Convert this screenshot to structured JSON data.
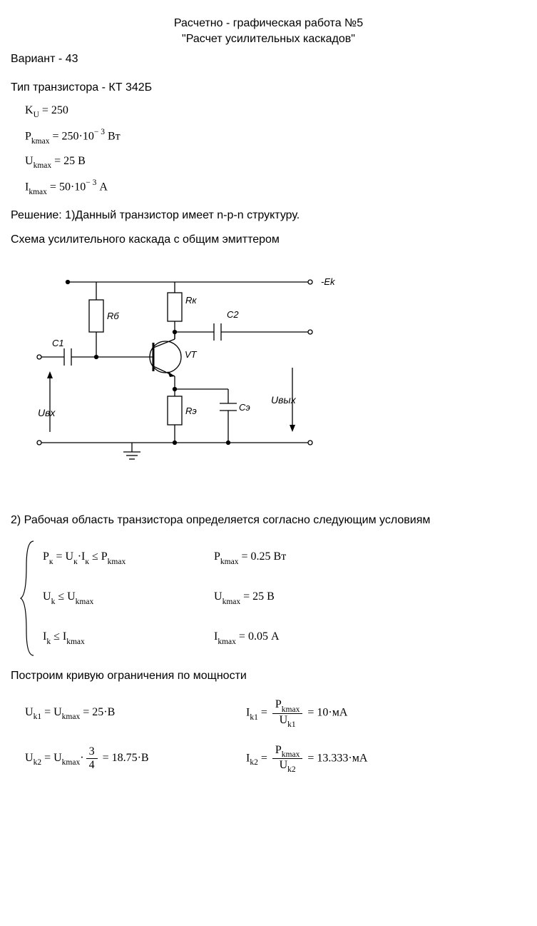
{
  "header": {
    "title1": "Расчетно - графическая работа №5",
    "title2": "\"Расчет усилительных каскадов\"",
    "variant": "Вариант - 43"
  },
  "params": {
    "transistor_line": "Тип транзистора - КТ 342Б",
    "ku_label": "K",
    "ku_sub": "U",
    "ku_val": " = 250",
    "pk_label": "P",
    "pk_sub": "kmax",
    "pk_val": " = 250·10",
    "pk_exp": "− 3",
    "pk_unit": " Вт",
    "uk_label": "U",
    "uk_sub": "kmax",
    "uk_val": " = 25  В",
    "ik_label": "I",
    "ik_sub": "kmax",
    "ik_val": " = 50·10",
    "ik_exp": "− 3",
    "ik_unit": "  А"
  },
  "solution": {
    "line1": "Решение: 1)Данный транзистор имеет n-p-n структуру.",
    "line2": "Схема усилительного каскада с общим эмиттером"
  },
  "circuit": {
    "labels": {
      "ek": "-Ek",
      "rb": "Rб",
      "rk": "Rк",
      "c1": "C1",
      "c2": "С2",
      "vt": "VT",
      "re": "Rэ",
      "ce": "Сэ",
      "uin": "Uвх",
      "uout": "Uвых"
    },
    "stroke": "#000000",
    "stroke_width": 1.3,
    "font_size_label": 13,
    "font_size_io": 14
  },
  "section2": {
    "heading": "2) Рабочая область транзистора определяется согласно следующим условиям",
    "r1c1_html": "P<span class='sub'>к</span> = U<span class='sub'>к</span>·I<span class='sub'>к</span> ≤ P<span class='sub'>kmax</span>",
    "r1c2_html": "P<span class='sub'>kmax</span> = 0.25  Вт",
    "r2c1_html": "U<span class='sub'>k</span> ≤ U<span class='sub'>kmax</span>",
    "r2c2_html": "U<span class='sub'>kmax</span> = 25   В",
    "r3c1_html": "I<span class='sub'>k</span> ≤ I<span class='sub'>kmax</span>",
    "r3c2_html": "I<span class='sub'>kmax</span> = 0.05   А",
    "curve_line": "Построим кривую ограничения по мощности",
    "eq1_left_html": "U<span class='sub'>k1</span> = U<span class='sub'>kmax</span> = 25·В",
    "eq1_right_pre": "I",
    "eq1_right_sub": "k1",
    "eq1_right_eq": " = ",
    "eq1_frac_num_html": "P<span class='sub'>kmax</span>",
    "eq1_frac_den_html": "U<span class='sub'>k1</span>",
    "eq1_right_post": " = 10·мА",
    "eq2_left_pre_html": "U<span class='sub'>k2</span> = U<span class='sub'>kmax</span>·",
    "eq2_left_frac_num": "3",
    "eq2_left_frac_den": "4",
    "eq2_left_post": " = 18.75·В",
    "eq2_right_pre": "I",
    "eq2_right_sub": "k2",
    "eq2_frac_num_html": "P<span class='sub'>kmax</span>",
    "eq2_frac_den_html": "U<span class='sub'>k2</span>",
    "eq2_right_post": " = 13.333·мА"
  }
}
